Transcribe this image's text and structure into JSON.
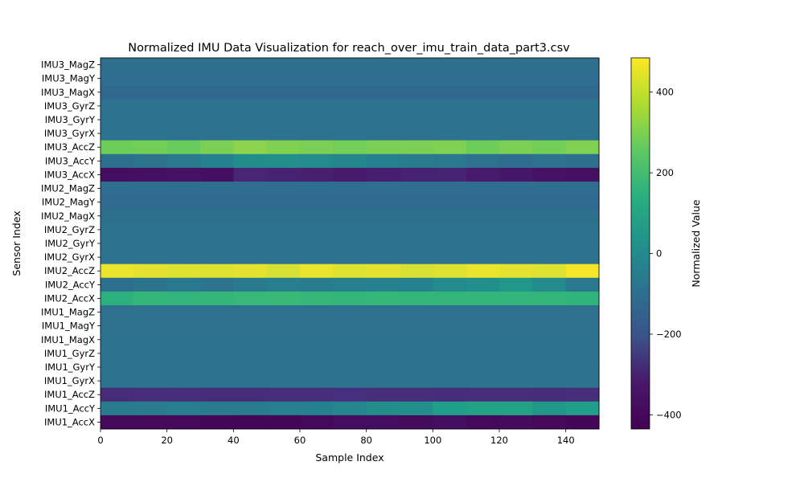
{
  "chart_data": {
    "type": "heatmap",
    "title": "Normalized IMU Data Visualization for reach_over_imu_train_data_part3.csv",
    "xlabel": "Sample Index",
    "ylabel": "Sensor Index",
    "colorbar_label": "Normalized Value",
    "colormap": "viridis",
    "xlim": [
      0,
      150
    ],
    "x_ticks": [
      0,
      20,
      40,
      60,
      80,
      100,
      120,
      140
    ],
    "color_range": [
      -435,
      485
    ],
    "colorbar_ticks": [
      400,
      200,
      0,
      -200,
      -400
    ],
    "colorbar_tick_labels": [
      "400",
      "200",
      "0",
      "−200",
      "−400"
    ],
    "rows": [
      {
        "label": "IMU3_MagZ",
        "values": [
          -60,
          -60,
          -60,
          -60,
          -60,
          -60,
          -60,
          -60,
          -60,
          -60,
          -60,
          -60,
          -60,
          -60,
          -60
        ]
      },
      {
        "label": "IMU3_MagY",
        "values": [
          -65,
          -65,
          -65,
          -65,
          -65,
          -65,
          -65,
          -65,
          -65,
          -65,
          -65,
          -65,
          -65,
          -65,
          -65
        ]
      },
      {
        "label": "IMU3_MagX",
        "values": [
          -90,
          -90,
          -90,
          -90,
          -90,
          -90,
          -90,
          -90,
          -90,
          -90,
          -90,
          -90,
          -90,
          -90,
          -90
        ]
      },
      {
        "label": "IMU3_GyrZ",
        "values": [
          -45,
          -45,
          -45,
          -45,
          -45,
          -45,
          -45,
          -45,
          -45,
          -45,
          -45,
          -45,
          -45,
          -45,
          -45
        ]
      },
      {
        "label": "IMU3_GyrY",
        "values": [
          -45,
          -45,
          -45,
          -45,
          -45,
          -45,
          -45,
          -45,
          -45,
          -45,
          -45,
          -45,
          -45,
          -45,
          -45
        ]
      },
      {
        "label": "IMU3_GyrX",
        "values": [
          -45,
          -45,
          -45,
          -45,
          -45,
          -45,
          -45,
          -45,
          -45,
          -45,
          -45,
          -45,
          -45,
          -45,
          -45
        ]
      },
      {
        "label": "IMU3_AccZ",
        "values": [
          370,
          375,
          360,
          380,
          395,
          385,
          380,
          375,
          380,
          380,
          385,
          370,
          380,
          375,
          385
        ]
      },
      {
        "label": "IMU3_AccY",
        "values": [
          -60,
          -40,
          -20,
          20,
          70,
          80,
          60,
          40,
          20,
          0,
          -20,
          -50,
          -70,
          -50,
          -60
        ]
      },
      {
        "label": "IMU3_AccX",
        "values": [
          -395,
          -390,
          -385,
          -395,
          -330,
          -340,
          -345,
          -360,
          -350,
          -340,
          -335,
          -360,
          -370,
          -385,
          -390
        ]
      },
      {
        "label": "IMU2_MagZ",
        "values": [
          -65,
          -65,
          -65,
          -65,
          -65,
          -65,
          -65,
          -65,
          -65,
          -65,
          -65,
          -65,
          -65,
          -65,
          -65
        ]
      },
      {
        "label": "IMU2_MagY",
        "values": [
          -80,
          -80,
          -80,
          -80,
          -80,
          -80,
          -80,
          -80,
          -80,
          -80,
          -80,
          -80,
          -80,
          -80,
          -80
        ]
      },
      {
        "label": "IMU2_MagX",
        "values": [
          -60,
          -60,
          -60,
          -60,
          -60,
          -60,
          -60,
          -60,
          -60,
          -60,
          -60,
          -60,
          -60,
          -60,
          -60
        ]
      },
      {
        "label": "IMU2_GyrZ",
        "values": [
          -45,
          -45,
          -45,
          -45,
          -45,
          -45,
          -45,
          -45,
          -45,
          -45,
          -45,
          -45,
          -45,
          -45,
          -45
        ]
      },
      {
        "label": "IMU2_GyrY",
        "values": [
          -45,
          -45,
          -45,
          -45,
          -45,
          -45,
          -45,
          -45,
          -45,
          -45,
          -45,
          -45,
          -45,
          -45,
          -45
        ]
      },
      {
        "label": "IMU2_GyrX",
        "values": [
          -45,
          -45,
          -45,
          -45,
          -45,
          -45,
          -45,
          -45,
          -45,
          -45,
          -45,
          -45,
          -45,
          -45,
          -45
        ]
      },
      {
        "label": "IMU2_AccZ",
        "values": [
          470,
          465,
          460,
          460,
          465,
          455,
          470,
          460,
          465,
          455,
          460,
          470,
          465,
          460,
          480
        ]
      },
      {
        "label": "IMU2_AccY",
        "values": [
          -60,
          -40,
          -20,
          -40,
          -10,
          10,
          0,
          10,
          20,
          20,
          60,
          80,
          110,
          60,
          -20
        ]
      },
      {
        "label": "IMU2_AccX",
        "values": [
          220,
          250,
          240,
          250,
          260,
          265,
          255,
          250,
          255,
          250,
          245,
          250,
          240,
          245,
          235
        ]
      },
      {
        "label": "IMU1_MagZ",
        "values": [
          -55,
          -55,
          -55,
          -55,
          -55,
          -55,
          -55,
          -55,
          -55,
          -55,
          -55,
          -55,
          -55,
          -55,
          -55
        ]
      },
      {
        "label": "IMU1_MagY",
        "values": [
          -55,
          -55,
          -55,
          -55,
          -55,
          -55,
          -55,
          -55,
          -55,
          -55,
          -55,
          -55,
          -55,
          -55,
          -55
        ]
      },
      {
        "label": "IMU1_MagX",
        "values": [
          -45,
          -45,
          -45,
          -45,
          -45,
          -45,
          -45,
          -45,
          -45,
          -45,
          -45,
          -45,
          -45,
          -45,
          -45
        ]
      },
      {
        "label": "IMU1_GyrZ",
        "values": [
          -45,
          -45,
          -45,
          -45,
          -45,
          -45,
          -45,
          -45,
          -45,
          -45,
          -45,
          -45,
          -45,
          -45,
          -45
        ]
      },
      {
        "label": "IMU1_GyrY",
        "values": [
          -45,
          -45,
          -45,
          -45,
          -45,
          -45,
          -45,
          -45,
          -45,
          -45,
          -45,
          -45,
          -45,
          -45,
          -45
        ]
      },
      {
        "label": "IMU1_GyrX",
        "values": [
          -45,
          -45,
          -45,
          -45,
          -45,
          -45,
          -45,
          -45,
          -45,
          -45,
          -45,
          -45,
          -45,
          -45,
          -45
        ]
      },
      {
        "label": "IMU1_AccZ",
        "values": [
          -305,
          -300,
          -300,
          -305,
          -305,
          -300,
          -300,
          -295,
          -300,
          -300,
          -305,
          -300,
          -300,
          -305,
          -300
        ]
      },
      {
        "label": "IMU1_AccY",
        "values": [
          0,
          0,
          5,
          0,
          0,
          10,
          20,
          40,
          70,
          80,
          140,
          160,
          160,
          110,
          140
        ]
      },
      {
        "label": "IMU1_AccX",
        "values": [
          -410,
          -415,
          -415,
          -420,
          -425,
          -425,
          -410,
          -400,
          -400,
          -405,
          -395,
          -410,
          -405,
          -415,
          -420
        ]
      }
    ]
  }
}
